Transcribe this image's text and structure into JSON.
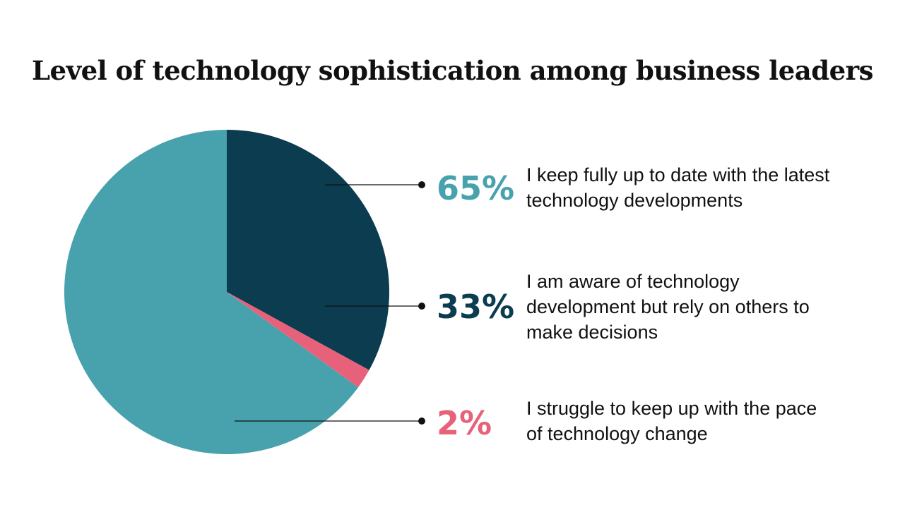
{
  "chart_data": {
    "type": "pie",
    "title": "Level of technology sophistication among business leaders",
    "slices": [
      {
        "label": "I keep fully up to date with the latest technology developments",
        "value": 65,
        "value_label": "65%",
        "color": "#48a2ae"
      },
      {
        "label": "I am aware of technology development but rely on others to make decisions",
        "value": 33,
        "value_label": "33%",
        "color": "#0b3c4f"
      },
      {
        "label": "I struggle to keep up with the pace of technology change",
        "value": 2,
        "value_label": "2%",
        "color": "#e8617a"
      }
    ]
  }
}
